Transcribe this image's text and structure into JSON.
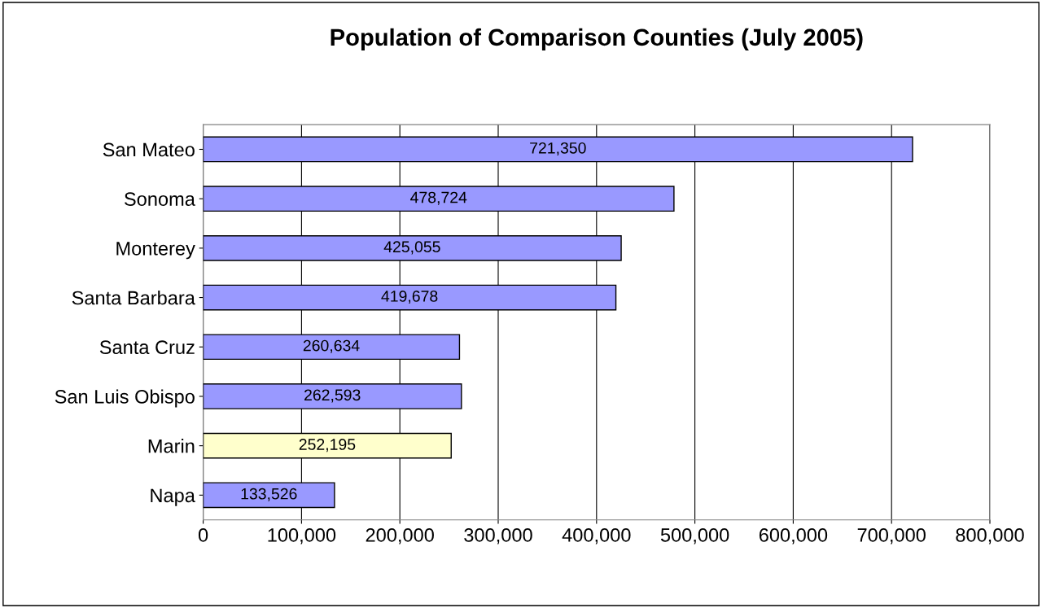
{
  "chart_data": {
    "type": "bar",
    "orientation": "horizontal",
    "title": "Population of Comparison Counties (July 2005)",
    "categories": [
      "San Mateo",
      "Sonoma",
      "Monterey",
      "Santa Barbara",
      "Santa Cruz",
      "San Luis Obispo",
      "Marin",
      "Napa"
    ],
    "values": [
      721350,
      478724,
      425055,
      419678,
      260634,
      262593,
      252195,
      133526
    ],
    "value_labels": [
      "721,350",
      "478,724",
      "425,055",
      "419,678",
      "260,634",
      "262,593",
      "252,195",
      "133,526"
    ],
    "colors": [
      "#9999ff",
      "#9999ff",
      "#9999ff",
      "#9999ff",
      "#9999ff",
      "#9999ff",
      "#ffffcc",
      "#9999ff"
    ],
    "xlim": [
      0,
      800000
    ],
    "xticks": [
      0,
      {
        "value": 100000,
        "label": "100,000"
      },
      {
        "value": 200000,
        "label": "200,000"
      },
      {
        "value": 300000,
        "label": "300,000"
      },
      {
        "value": 400000,
        "label": "400,000"
      },
      {
        "value": 500000,
        "label": "500,000"
      },
      {
        "value": 600000,
        "label": "600,000"
      },
      {
        "value": 700000,
        "label": "700,000"
      },
      {
        "value": 800000,
        "label": "800,000"
      }
    ],
    "grid": "x",
    "legend": false
  }
}
